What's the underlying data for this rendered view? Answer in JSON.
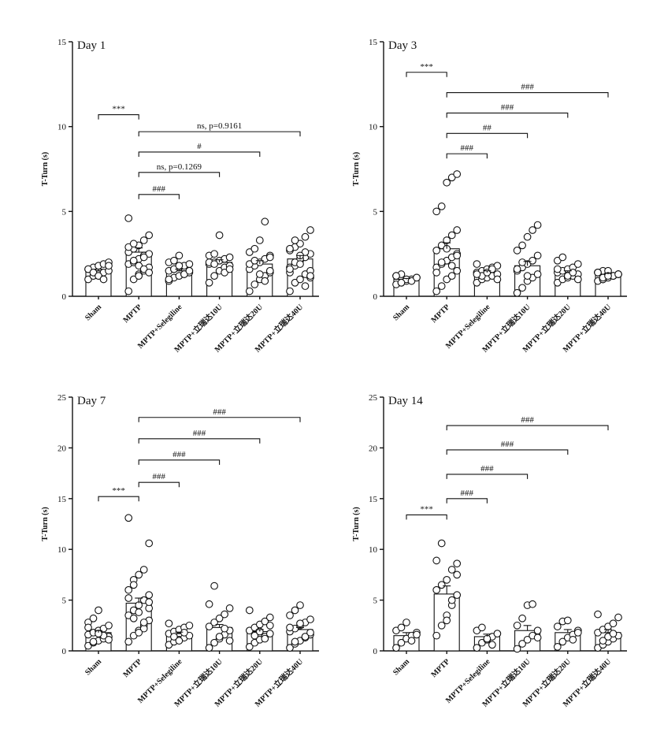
{
  "chart_data": [
    {
      "type": "bar",
      "title": "Day 1",
      "ylabel": "T-Turn (s)",
      "ylim": [
        0,
        15
      ],
      "yticks": [
        "0",
        "5",
        "10",
        "15"
      ],
      "categories": [
        "Sham",
        "MPTP",
        "MPTP+Selegiline",
        "MPTP+立瑞达10U",
        "MPTP+立瑞达20U",
        "MPTP+立瑞达40U"
      ],
      "values": [
        1.5,
        2.6,
        1.5,
        2.0,
        1.9,
        2.2
      ],
      "errors": [
        0.1,
        0.25,
        0.1,
        0.15,
        0.2,
        0.2
      ],
      "points": [
        [
          1.0,
          1.2,
          1.3,
          1.4,
          1.5,
          1.6,
          1.7,
          1.8,
          1.9,
          2.0,
          1.6,
          1.4,
          1.2,
          1.0,
          1.8
        ],
        [
          0.3,
          1.0,
          1.3,
          1.5,
          1.7,
          1.9,
          2.0,
          2.2,
          2.4,
          2.5,
          2.6,
          2.8,
          3.0,
          3.3,
          3.6,
          4.6,
          2.1,
          1.8,
          1.6,
          1.4,
          2.9,
          3.1,
          1.2,
          2.3
        ],
        [
          0.9,
          1.1,
          1.2,
          1.3,
          1.4,
          1.5,
          1.6,
          1.7,
          1.8,
          1.9,
          2.0,
          2.1,
          2.4,
          1.3,
          1.5,
          1.0,
          1.6,
          1.8
        ],
        [
          0.8,
          1.2,
          1.5,
          1.7,
          1.8,
          1.9,
          2.0,
          2.1,
          2.2,
          2.3,
          2.4,
          2.5,
          3.6,
          1.4,
          1.6,
          2.0,
          1.9
        ],
        [
          0.3,
          0.7,
          1.0,
          1.2,
          1.4,
          1.6,
          1.8,
          2.0,
          2.2,
          2.4,
          2.6,
          2.8,
          3.3,
          4.4,
          1.5,
          1.9,
          2.1,
          1.3,
          0.9,
          2.3
        ],
        [
          0.3,
          0.8,
          1.0,
          1.3,
          1.5,
          1.7,
          1.9,
          2.1,
          2.3,
          2.5,
          2.7,
          2.9,
          3.1,
          3.5,
          3.9,
          1.4,
          1.8,
          2.2,
          2.6,
          1.1,
          1.6,
          2.0,
          2.4,
          0.6,
          1.2,
          2.8,
          3.3,
          1.9
        ]
      ],
      "significance": [
        {
          "from": 0,
          "to": 1,
          "label": "***",
          "level": 10.7
        },
        {
          "from": 1,
          "to": 2,
          "label": "###",
          "level": 6.0
        },
        {
          "from": 1,
          "to": 3,
          "label": "ns, p=0.1269",
          "level": 7.3
        },
        {
          "from": 1,
          "to": 4,
          "label": "#",
          "level": 8.5
        },
        {
          "from": 1,
          "to": 5,
          "label": "ns, p=0.9161",
          "level": 9.7
        }
      ]
    },
    {
      "type": "bar",
      "title": "Day 3",
      "ylabel": "T-Turn (s)",
      "ylim": [
        0,
        15
      ],
      "yticks": [
        "0",
        "5",
        "10",
        "15"
      ],
      "categories": [
        "Sham",
        "MPTP",
        "MPTP+Selegiline",
        "MPTP+立瑞达10U",
        "MPTP+立瑞达20U",
        "MPTP+立瑞达40U"
      ],
      "values": [
        1.0,
        2.8,
        1.4,
        1.8,
        1.4,
        1.3
      ],
      "errors": [
        0.05,
        0.35,
        0.1,
        0.25,
        0.1,
        0.05
      ],
      "points": [
        [
          0.7,
          0.8,
          0.9,
          1.0,
          1.1,
          1.2,
          1.3,
          1.0,
          0.9,
          1.1,
          1.2,
          0.8
        ],
        [
          0.3,
          0.6,
          1.0,
          1.2,
          1.5,
          1.7,
          1.9,
          2.1,
          2.3,
          2.5,
          2.7,
          3.0,
          3.3,
          3.6,
          3.9,
          5.0,
          5.3,
          6.7,
          7.0,
          7.2,
          1.4,
          2.0,
          2.8,
          1.8,
          2.4
        ],
        [
          0.8,
          1.0,
          1.1,
          1.2,
          1.3,
          1.4,
          1.5,
          1.6,
          1.7,
          1.8,
          1.9,
          1.2,
          1.4,
          1.6,
          1.0,
          1.3
        ],
        [
          0.2,
          0.5,
          0.9,
          1.1,
          1.3,
          1.5,
          1.7,
          1.9,
          2.1,
          2.4,
          2.7,
          3.0,
          3.5,
          3.9,
          4.2,
          1.6,
          2.0,
          1.2
        ],
        [
          0.8,
          1.0,
          1.1,
          1.2,
          1.3,
          1.4,
          1.5,
          1.6,
          1.7,
          1.9,
          2.1,
          2.3,
          1.2,
          1.4,
          1.0,
          1.6
        ],
        [
          0.9,
          1.0,
          1.1,
          1.2,
          1.3,
          1.4,
          1.5,
          1.1,
          1.2,
          1.3,
          1.4,
          1.0,
          1.5,
          1.2,
          1.3,
          1.4,
          1.1,
          1.2
        ]
      ],
      "significance": [
        {
          "from": 0,
          "to": 1,
          "label": "***",
          "level": 13.2
        },
        {
          "from": 1,
          "to": 2,
          "label": "###",
          "level": 8.4
        },
        {
          "from": 1,
          "to": 3,
          "label": "##",
          "level": 9.6
        },
        {
          "from": 1,
          "to": 4,
          "label": "###",
          "level": 10.8
        },
        {
          "from": 1,
          "to": 5,
          "label": "###",
          "level": 12.0
        }
      ]
    },
    {
      "type": "bar",
      "title": "Day 7",
      "ylabel": "T-Turn (s)",
      "ylim": [
        0,
        25
      ],
      "yticks": [
        "0",
        "5",
        "10",
        "15",
        "20",
        "25"
      ],
      "categories": [
        "Sham",
        "MPTP",
        "MPTP+Selegiline",
        "MPTP+立瑞达10U",
        "MPTP+立瑞达20U",
        "MPTP+立瑞达40U"
      ],
      "values": [
        1.8,
        4.7,
        1.7,
        2.3,
        1.9,
        2.1
      ],
      "errors": [
        0.2,
        0.5,
        0.15,
        0.3,
        0.2,
        0.2
      ],
      "points": [
        [
          0.5,
          0.8,
          1.0,
          1.2,
          1.4,
          1.6,
          1.8,
          2.0,
          2.2,
          2.5,
          2.8,
          3.2,
          4.0,
          1.5,
          1.1,
          2.3,
          0.9,
          1.7
        ],
        [
          0.9,
          1.5,
          2.0,
          2.5,
          3.0,
          3.5,
          4.0,
          4.5,
          5.0,
          5.5,
          6.0,
          7.0,
          7.5,
          8.0,
          10.6,
          13.1,
          3.2,
          3.8,
          2.2,
          4.2,
          5.2,
          6.5,
          1.8,
          2.8,
          4.8
        ],
        [
          0.6,
          0.9,
          1.1,
          1.3,
          1.5,
          1.7,
          1.9,
          2.1,
          2.3,
          2.5,
          2.7,
          1.4,
          1.0,
          1.8
        ],
        [
          0.3,
          0.8,
          1.2,
          1.6,
          2.0,
          2.4,
          2.8,
          3.2,
          3.6,
          4.2,
          4.6,
          6.4,
          1.4,
          2.2,
          1.0
        ],
        [
          0.4,
          0.8,
          1.1,
          1.4,
          1.7,
          2.0,
          2.3,
          2.6,
          2.9,
          3.3,
          4.0,
          1.5,
          1.9,
          1.2,
          2.5
        ],
        [
          0.3,
          0.7,
          1.0,
          1.3,
          1.6,
          1.9,
          2.2,
          2.5,
          2.8,
          3.1,
          3.5,
          4.0,
          4.5,
          1.4,
          1.8,
          2.3,
          0.9,
          2.7
        ]
      ],
      "significance": [
        {
          "from": 0,
          "to": 1,
          "label": "***",
          "level": 15.2
        },
        {
          "from": 1,
          "to": 2,
          "label": "###",
          "level": 16.6
        },
        {
          "from": 1,
          "to": 3,
          "label": "###",
          "level": 18.8
        },
        {
          "from": 1,
          "to": 4,
          "label": "###",
          "level": 20.9
        },
        {
          "from": 1,
          "to": 5,
          "label": "###",
          "level": 23.0
        }
      ]
    },
    {
      "type": "bar",
      "title": "Day 14",
      "ylabel": "T-Turn (s)",
      "ylim": [
        0,
        25
      ],
      "yticks": [
        "0",
        "5",
        "10",
        "15",
        "20",
        "25"
      ],
      "categories": [
        "Sham",
        "MPTP",
        "MPTP+Selegiline",
        "MPTP+立瑞达10U",
        "MPTP+立瑞达20U",
        "MPTP+立瑞达40U"
      ],
      "values": [
        1.5,
        5.6,
        1.4,
        2.0,
        1.8,
        1.8
      ],
      "errors": [
        0.3,
        0.8,
        0.25,
        0.5,
        0.3,
        0.3
      ],
      "points": [
        [
          0.3,
          0.8,
          1.2,
          1.5,
          1.8,
          2.0,
          2.3,
          2.8,
          1.0,
          1.6
        ],
        [
          1.5,
          2.5,
          3.5,
          4.5,
          5.5,
          6.0,
          6.5,
          7.0,
          8.0,
          8.6,
          8.9,
          10.6,
          3.0,
          5.0,
          7.5
        ],
        [
          0.3,
          0.8,
          1.1,
          1.4,
          1.7,
          2.0,
          2.3,
          1.2,
          0.6
        ],
        [
          0.2,
          0.7,
          1.1,
          1.5,
          2.0,
          2.5,
          3.2,
          4.5,
          4.6,
          1.3
        ],
        [
          0.4,
          0.9,
          1.3,
          1.6,
          2.0,
          2.4,
          2.9,
          3.0,
          1.1,
          1.8
        ],
        [
          0.3,
          0.6,
          0.9,
          1.2,
          1.5,
          1.8,
          2.1,
          2.4,
          2.7,
          3.3,
          3.6,
          1.0,
          1.4,
          1.7
        ]
      ],
      "significance": [
        {
          "from": 0,
          "to": 1,
          "label": "***",
          "level": 13.4
        },
        {
          "from": 1,
          "to": 2,
          "label": "###",
          "level": 15.0
        },
        {
          "from": 1,
          "to": 3,
          "label": "###",
          "level": 17.4
        },
        {
          "from": 1,
          "to": 4,
          "label": "###",
          "level": 19.8
        },
        {
          "from": 1,
          "to": 5,
          "label": "###",
          "level": 22.2
        }
      ]
    }
  ]
}
